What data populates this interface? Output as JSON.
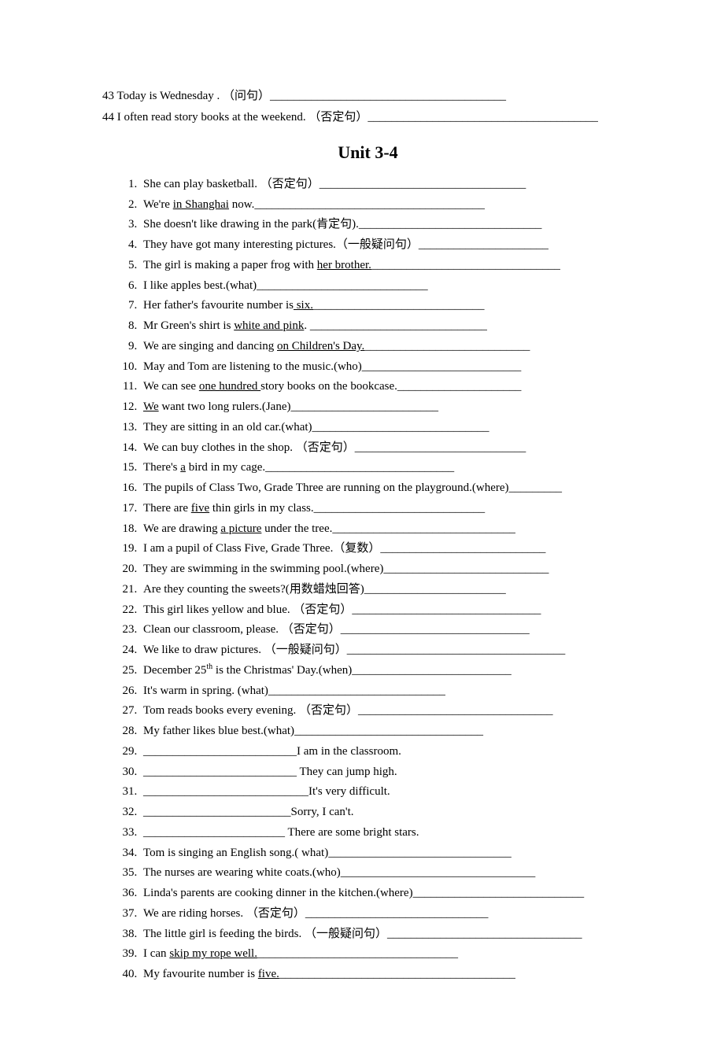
{
  "intro": [
    "43 Today is Wednesday . （问句）________________________________________",
    "44 I often read story books at the weekend. （否定句）_______________________________________"
  ],
  "section_title": "Unit 3-4",
  "items": [
    {
      "text": "She can play basketball. （否定句）___________________________________"
    },
    {
      "pre": "We're ",
      "u": "in Shanghai",
      "post": " now._______________________________________"
    },
    {
      "text": "She doesn't like drawing in the park(肯定句)._______________________________"
    },
    {
      "text": "They have got many interesting pictures.（一般疑问句）______________________"
    },
    {
      "pre": "The girl is making a paper frog with ",
      "u": "her brother.",
      "post": "________________________________"
    },
    {
      "text": "I like apples best.(what)_____________________________"
    },
    {
      "pre": "Her father's favourite number is",
      "u": " six.",
      "post": "_____________________________"
    },
    {
      "pre": "Mr Green's shirt is ",
      "u": "white and pink",
      "post": ". ______________________________"
    },
    {
      "pre": "We are singing and dancing ",
      "u": "on Children's Day.",
      "post": "____________________________"
    },
    {
      "text": "May and Tom are listening to the music.(who)___________________________"
    },
    {
      "pre": "We can see ",
      "u": "one hundred ",
      "post": "story books on the bookcase._____________________"
    },
    {
      "pre": "",
      "u": "We",
      "post": " want two long rulers.(Jane)_________________________"
    },
    {
      "text": "They are sitting in an old car.(what)______________________________"
    },
    {
      "text": "We can buy clothes in the shop. （否定句）_____________________________"
    },
    {
      "pre": "There's ",
      "u": "a",
      "post": " bird in my cage.________________________________"
    },
    {
      "text": "The pupils of Class Two, Grade Three are running on the playground.(where)_________"
    },
    {
      "pre": "There are ",
      "u": "five",
      "post": " thin girls in my class._____________________________"
    },
    {
      "pre": "We are drawing ",
      "u": "a picture",
      "post": " under the tree._______________________________"
    },
    {
      "text": "I am a pupil of Class Five, Grade Three.（复数）____________________________"
    },
    {
      "text": "They are swimming in the swimming pool.(where)____________________________"
    },
    {
      "text": "Are they counting the sweets?(用数蜡烛回答)________________________"
    },
    {
      "text": "This girl likes yellow and blue. （否定句）________________________________"
    },
    {
      "text": "Clean our classroom, please. （否定句）________________________________"
    },
    {
      "text": "We like to draw pictures. （一般疑问句）_____________________________________"
    },
    {
      "special": "dec25"
    },
    {
      "text": "It's warm in spring. (what)______________________________"
    },
    {
      "text": "Tom reads books every evening. （否定句）_________________________________"
    },
    {
      "text": "My father likes blue best.(what)________________________________"
    },
    {
      "text": "__________________________I am in the classroom."
    },
    {
      "text": "__________________________ They can jump high."
    },
    {
      "text": "____________________________It's very difficult."
    },
    {
      "text": "_________________________Sorry, I can't."
    },
    {
      "text": "________________________ There are some bright stars."
    },
    {
      "text": "Tom is singing an English song.( what)_______________________________"
    },
    {
      "text": "The nurses are wearing white coats.(who)_________________________________"
    },
    {
      "text": "Linda's parents are cooking dinner in the kitchen.(where)_____________________________"
    },
    {
      "text": "We are riding horses. （否定句）_______________________________"
    },
    {
      "text": "The little girl is feeding the birds. （一般疑问句）_________________________________"
    },
    {
      "pre": "I can ",
      "u": "skip my rope well.",
      "post": "__________________________________"
    },
    {
      "pre": "My favourite number is ",
      "u": "five.",
      "post": "________________________________________"
    }
  ],
  "dec25": {
    "pre": "December 25",
    "sup": "th",
    "post": " is the Christmas' Day.(when)___________________________"
  }
}
